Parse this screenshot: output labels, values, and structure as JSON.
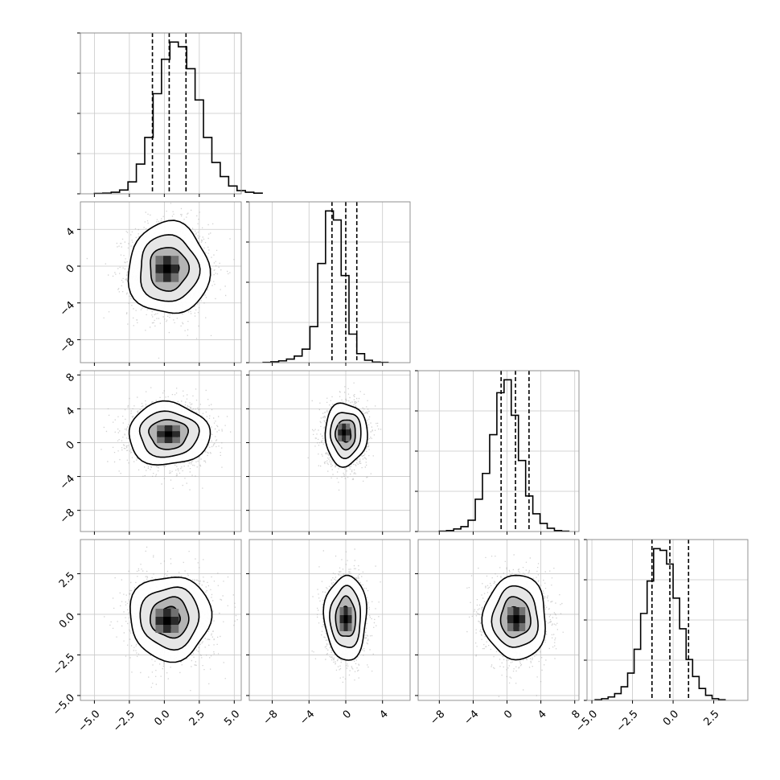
{
  "chart_data": {
    "type": "corner",
    "grid": true,
    "params": [
      {
        "range": [
          -6,
          5.5
        ],
        "ticks": [
          -5.0,
          -2.5,
          0.0,
          2.5,
          5.0
        ],
        "tick_labels": [
          "−5.0",
          "−2.5",
          "0.0",
          "2.5",
          "5.0"
        ],
        "quantiles": [
          -0.85,
          0.35,
          1.55
        ],
        "hist": {
          "x0": -5.0,
          "dx": 0.6,
          "values": [
            1,
            2,
            5,
            12,
            38,
            95,
            180,
            320,
            430,
            485,
            470,
            400,
            300,
            180,
            100,
            55,
            25,
            10,
            5,
            2
          ]
        }
      },
      {
        "range": [
          -10.5,
          7
        ],
        "ticks": [
          -8,
          -4,
          0,
          4
        ],
        "tick_labels": [
          "−8",
          "−4",
          "0",
          "4"
        ],
        "quantiles": [
          -1.5,
          0.0,
          1.2
        ],
        "hist": {
          "x0": -9.0,
          "dx": 0.85,
          "values": [
            1,
            3,
            6,
            12,
            22,
            45,
            120,
            330,
            505,
            475,
            290,
            95,
            30,
            8,
            2,
            1
          ]
        }
      },
      {
        "range": [
          -10.5,
          8.5
        ],
        "ticks": [
          -8,
          -4,
          0,
          4,
          8
        ],
        "tick_labels": [
          "−8",
          "−4",
          "0",
          "4",
          "8"
        ],
        "quantiles": [
          -0.7,
          1.0,
          2.6
        ],
        "hist": {
          "x0": -8.0,
          "dx": 0.85,
          "values": [
            1,
            3,
            8,
            15,
            35,
            100,
            180,
            300,
            430,
            470,
            360,
            220,
            110,
            55,
            25,
            10,
            3,
            1
          ]
        }
      },
      {
        "range": [
          -5.3,
          4.6
        ],
        "ticks": [
          -5.0,
          -2.5,
          0.0,
          2.5
        ],
        "tick_labels": [
          "−5.0",
          "−2.5",
          "0.0",
          "2.5"
        ],
        "quantiles": [
          -1.3,
          -0.2,
          0.95
        ],
        "hist": {
          "x0": -4.8,
          "dx": 0.4,
          "values": [
            2,
            5,
            10,
            20,
            40,
            80,
            150,
            255,
            350,
            445,
            440,
            400,
            300,
            210,
            120,
            70,
            35,
            15,
            5,
            2
          ]
        }
      }
    ],
    "y_tick_labels": {
      "1": [
        "4",
        "0",
        "−4",
        "−8"
      ],
      "2": [
        "8",
        "4",
        "0",
        "−4",
        "−8"
      ],
      "3": [
        "2.5",
        "0.0",
        "−2.5",
        "−5.0"
      ]
    },
    "pairs": [
      {
        "row": 1,
        "col": 0,
        "center": [
          0.3,
          -0.3
        ],
        "sd": [
          1.45,
          2.5
        ],
        "rotation_deg": 0,
        "dense_peak": [
          0.2,
          -0.3
        ]
      },
      {
        "row": 2,
        "col": 0,
        "center": [
          0.3,
          1.0
        ],
        "sd": [
          1.45,
          1.85
        ],
        "rotation_deg": 0,
        "dense_peak": [
          0.3,
          1.0
        ]
      },
      {
        "row": 2,
        "col": 1,
        "center": [
          0.0,
          1.0
        ],
        "sd": [
          1.15,
          1.85
        ],
        "rotation_deg": 0,
        "dense_peak": [
          -0.2,
          1.2
        ]
      },
      {
        "row": 3,
        "col": 0,
        "center": [
          0.4,
          -0.2
        ],
        "sd": [
          1.45,
          1.3
        ],
        "rotation_deg": 0,
        "dense_peak": [
          0.2,
          -0.4
        ]
      },
      {
        "row": 3,
        "col": 1,
        "center": [
          0.0,
          -0.2
        ],
        "sd": [
          1.15,
          1.3
        ],
        "rotation_deg": 0,
        "dense_peak": [
          0.0,
          -0.3
        ]
      },
      {
        "row": 3,
        "col": 2,
        "center": [
          1.0,
          -0.2
        ],
        "sd": [
          1.85,
          1.3
        ],
        "rotation_deg": 0,
        "dense_peak": [
          1.1,
          -0.3
        ]
      }
    ]
  }
}
